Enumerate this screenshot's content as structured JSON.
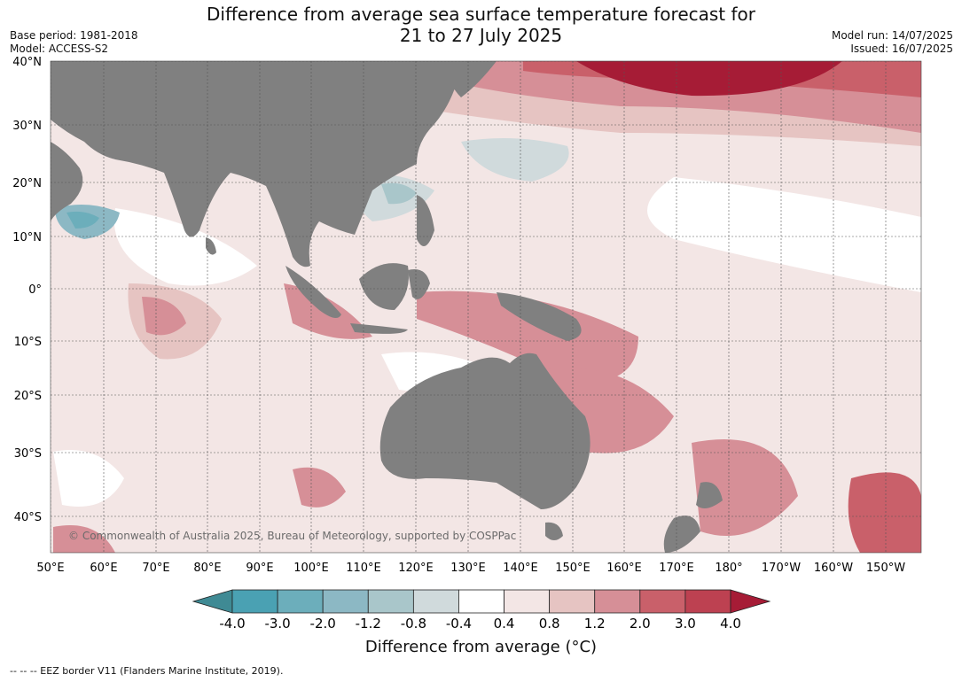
{
  "title": {
    "line1": "Difference from average sea surface temperature forecast for",
    "line2": "21 to 27 July 2025"
  },
  "meta": {
    "base_period": "Base period: 1981-2018",
    "model": "Model: ACCESS-S2",
    "model_run": "Model run: 14/07/2025",
    "issued": "Issued: 16/07/2025"
  },
  "map": {
    "region": "Indian Ocean, Maritime Continent and western Pacific",
    "land_color": "#808080",
    "lat_labels": [
      "40°N",
      "30°N",
      "20°N",
      "10°N",
      "0°",
      "10°S",
      "20°S",
      "30°S",
      "40°S"
    ],
    "lon_labels": [
      "50°E",
      "60°E",
      "70°E",
      "80°E",
      "90°E",
      "100°E",
      "110°E",
      "120°E",
      "130°E",
      "140°E",
      "150°E",
      "160°E",
      "170°E",
      "180°",
      "170°W",
      "160°W",
      "150°W"
    ],
    "copyright": "© Commonwealth of Australia 2025, Bureau of Meteorology, supported by COSPPac"
  },
  "colorbar": {
    "title": "Difference from average (°C)",
    "tick_labels": [
      "-4.0",
      "-3.0",
      "-2.0",
      "-1.2",
      "-0.8",
      "-0.4",
      "0.4",
      "0.8",
      "1.2",
      "2.0",
      "3.0",
      "4.0"
    ],
    "colors": [
      "#3f8a94",
      "#4aa1b3",
      "#6caebb",
      "#8cb8c4",
      "#a9c6ca",
      "#d0dadc",
      "#ffffff",
      "#f3e6e5",
      "#e6c4c2",
      "#d68f97",
      "#c9606a",
      "#bd4151",
      "#a61c36"
    ]
  },
  "footnote": "--  --  -- EEZ border V11 (Flanders Marine Institute, 2019)."
}
